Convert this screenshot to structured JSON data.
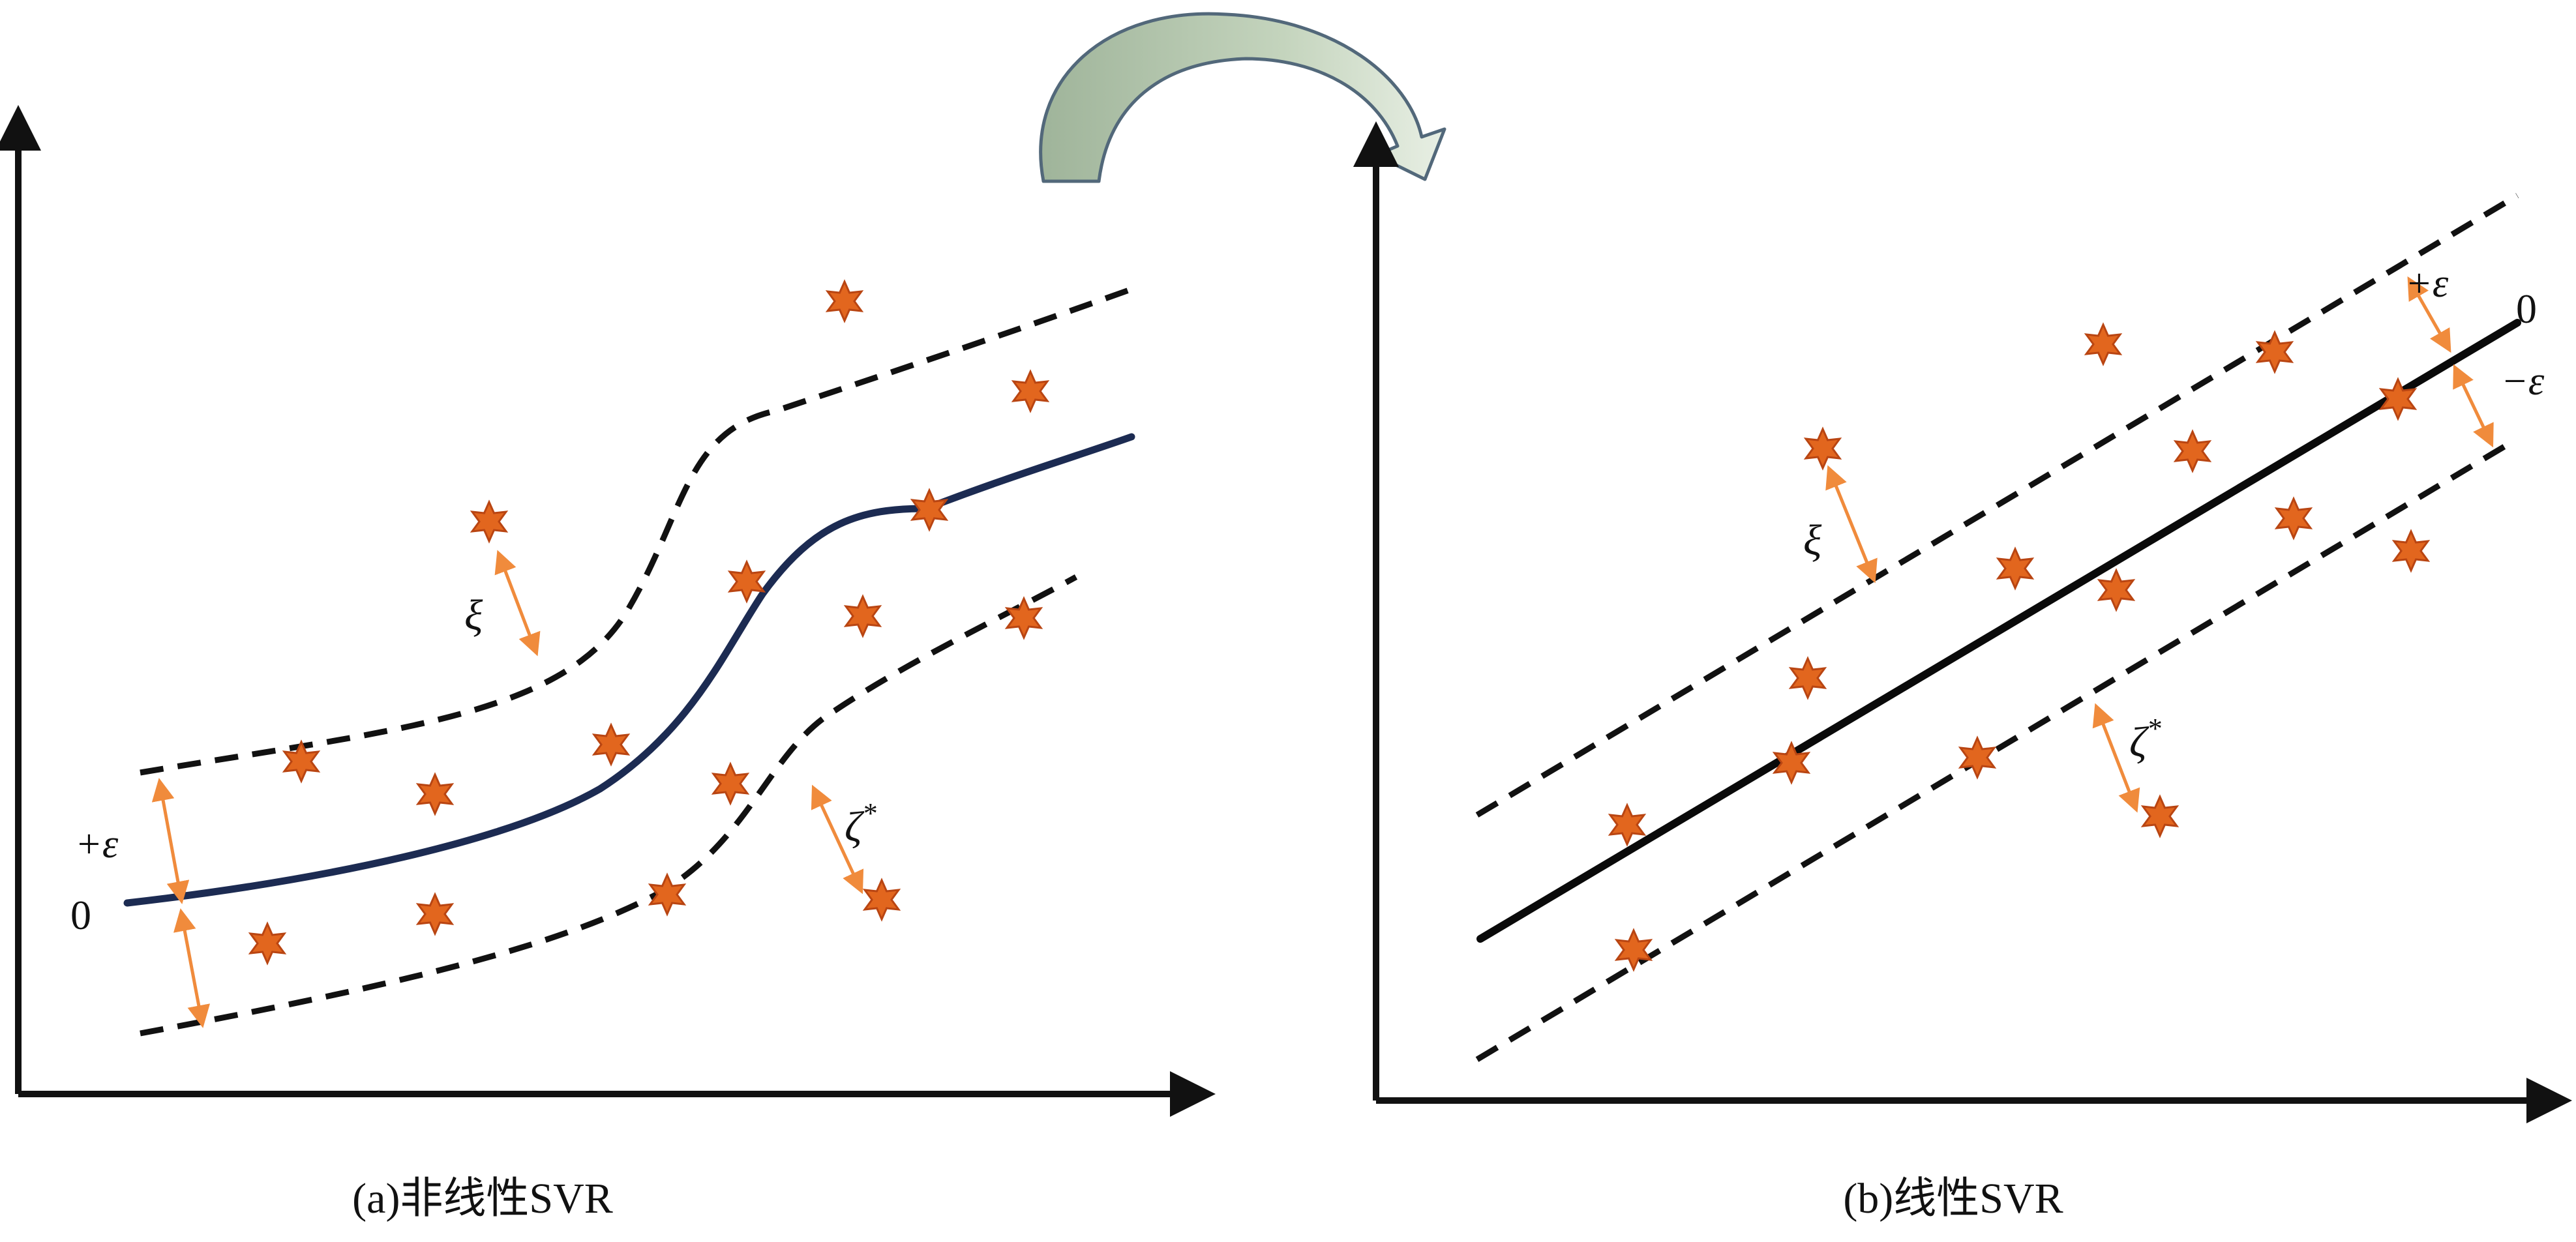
{
  "colors": {
    "axis": "#111111",
    "curve_nonlinear": "#1c2b52",
    "line_linear": "#0a0a0a",
    "dash": "#111111",
    "star": "#e2661e",
    "star_edge": "#b94512",
    "arrow_double": "#f08b3c",
    "transform_arrow_fill": "#a9bc9f",
    "transform_arrow_stroke": "#52687a"
  },
  "icons": {
    "sample_point": "six-point-star",
    "transform_arrow": "curved-arrow-right"
  },
  "panel_a": {
    "caption": "(a)非线性SVR",
    "labels": {
      "plus_eps": "+ε",
      "zero": "0",
      "xi": "ξ",
      "xi_star_base": "ζ",
      "xi_star_sup": "*"
    }
  },
  "panel_b": {
    "caption": "(b)线性SVR",
    "labels": {
      "plus_eps": "+ε",
      "zero": "0",
      "minus_eps": "−ε",
      "xi": "ξ",
      "xi_star_base": "ζ",
      "xi_star_sup": "*"
    }
  }
}
